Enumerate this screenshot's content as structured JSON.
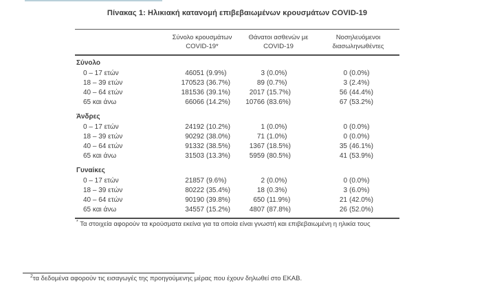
{
  "title": "Πίνακας 1: Ηλικιακή κατανομή επιβεβαιωμένων κρουσμάτων COVID-19",
  "table": {
    "headers": [
      {
        "line1": "Σύνολο κρουσμάτων",
        "line2": "COVID-19*"
      },
      {
        "line1": "Θάνατοι ασθενών με",
        "line2": "COVID-19"
      },
      {
        "line1": "Νοσηλευόμενοι",
        "line2": "διασωληνωθέντες"
      }
    ],
    "sections": [
      {
        "label": "Σύνολο",
        "rows": [
          {
            "label": "0 – 17 ετών",
            "cells": [
              [
                "46051",
                "(9.9%)"
              ],
              [
                "3",
                "(0.0%)"
              ],
              [
                "0",
                "(0.0%)"
              ]
            ]
          },
          {
            "label": "18 – 39 ετών",
            "cells": [
              [
                "170523",
                "(36.7%)"
              ],
              [
                "89",
                "(0.7%)"
              ],
              [
                "3",
                "(2.4%)"
              ]
            ]
          },
          {
            "label": "40 – 64 ετών",
            "cells": [
              [
                "181536",
                "(39.1%)"
              ],
              [
                "2017",
                "(15.7%)"
              ],
              [
                "56",
                "(44.4%)"
              ]
            ]
          },
          {
            "label": "65 και άνω",
            "cells": [
              [
                "66066",
                "(14.2%)"
              ],
              [
                "10766",
                "(83.6%)"
              ],
              [
                "67",
                "(53.2%)"
              ]
            ]
          }
        ]
      },
      {
        "label": "Άνδρες",
        "rows": [
          {
            "label": "0 – 17 ετών",
            "cells": [
              [
                "24192",
                "(10.2%)"
              ],
              [
                "1",
                "(0.0%)"
              ],
              [
                "0",
                "(0.0%)"
              ]
            ]
          },
          {
            "label": "18 – 39 ετών",
            "cells": [
              [
                "90292",
                "(38.0%)"
              ],
              [
                "71",
                "(1.0%)"
              ],
              [
                "0",
                "(0.0%)"
              ]
            ]
          },
          {
            "label": "40 – 64 ετών",
            "cells": [
              [
                "91332",
                "(38.5%)"
              ],
              [
                "1367",
                "(18.5%)"
              ],
              [
                "35",
                "(46.1%)"
              ]
            ]
          },
          {
            "label": "65 και άνω",
            "cells": [
              [
                "31503",
                "(13.3%)"
              ],
              [
                "5959",
                "(80.5%)"
              ],
              [
                "41",
                "(53.9%)"
              ]
            ]
          }
        ]
      },
      {
        "label": "Γυναίκες",
        "rows": [
          {
            "label": "0 – 17 ετών",
            "cells": [
              [
                "21857",
                "(9.6%)"
              ],
              [
                "2",
                "(0.0%)"
              ],
              [
                "0",
                "(0.0%)"
              ]
            ]
          },
          {
            "label": "18 – 39 ετών",
            "cells": [
              [
                "80222",
                "(35.4%)"
              ],
              [
                "18",
                "(0.3%)"
              ],
              [
                "3",
                "(6.0%)"
              ]
            ]
          },
          {
            "label": "40 – 64 ετών",
            "cells": [
              [
                "90190",
                "(39.8%)"
              ],
              [
                "650",
                "(11.9%)"
              ],
              [
                "21",
                "(42.0%)"
              ]
            ]
          },
          {
            "label": "65 και άνω",
            "cells": [
              [
                "34557",
                "(15.2%)"
              ],
              [
                "4807",
                "(87.8%)"
              ],
              [
                "26",
                "(52.0%)"
              ]
            ]
          }
        ]
      }
    ],
    "footnote": {
      "marker": "*",
      "text": "Τα στοιχεία αφορούν τα κρούσματα εκείνα για τα οποία είναι γνωστή και επιβεβαιωμένη η ηλικία τους"
    }
  },
  "page_footnote": {
    "marker": "2",
    "text": "τα δεδομένα αφορούν τις εισαγωγές της προηγούμενης μέρας που έχουν δηλωθεί στο ΕΚΑΒ."
  },
  "colors": {
    "text": "#3e3e3e",
    "rule": "#4d4d4d",
    "accent_bar": "#b9cfd9"
  }
}
